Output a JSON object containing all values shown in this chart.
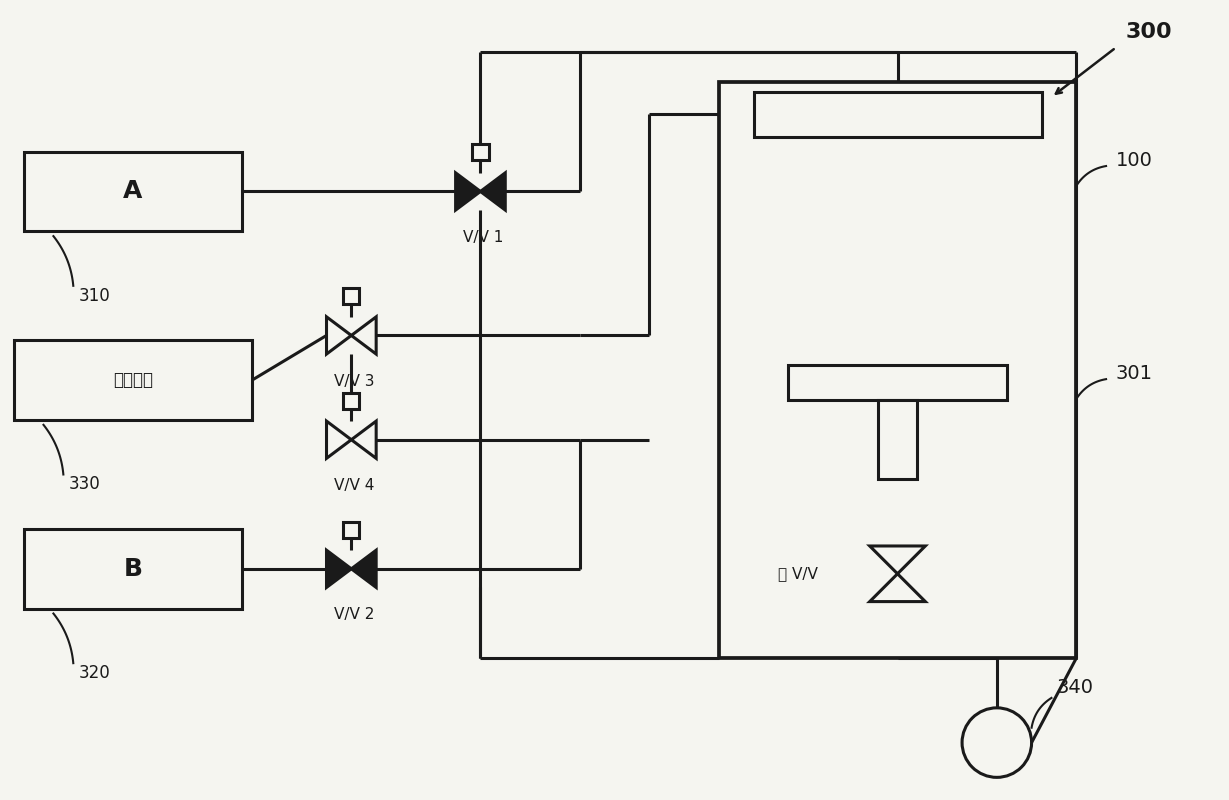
{
  "bg_color": "#f5f5f0",
  "line_color": "#1a1a1a",
  "line_width": 2.2,
  "fig_width": 12.29,
  "fig_height": 8.0,
  "label_300": "300",
  "label_310": "310",
  "label_320": "320",
  "label_330": "330",
  "label_340": "340",
  "label_100": "100",
  "label_301": "301",
  "label_A": "A",
  "label_B": "B",
  "label_purge": "吹扫气体",
  "label_vv1": "V/V 1",
  "label_vv2": "V/V 2",
  "label_vv3": "V/V 3",
  "label_vv4": "V/V 4",
  "label_gate": "闸 V/V"
}
